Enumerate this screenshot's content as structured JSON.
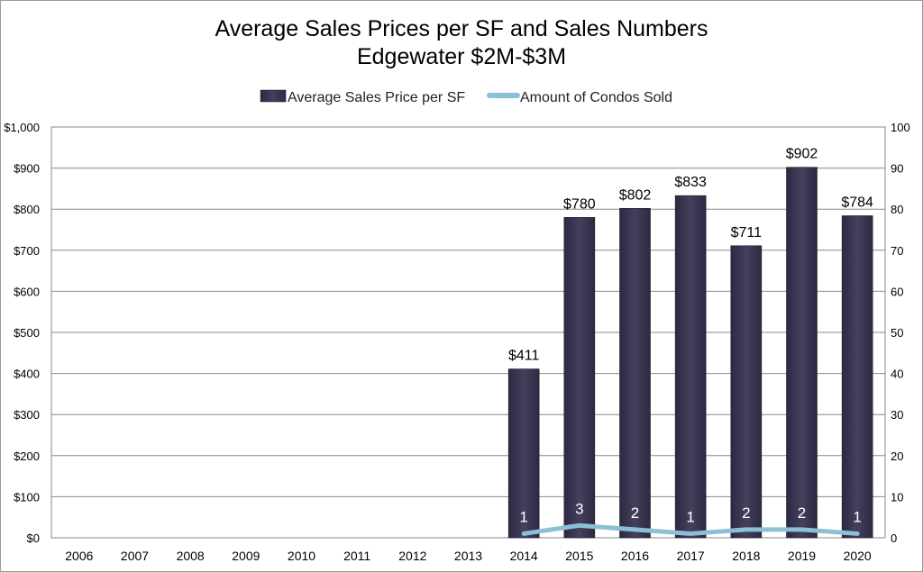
{
  "chart_data": {
    "type": "bar",
    "title": "Average Sales Prices per SF and Sales Numbers",
    "subtitle": "Edgewater $2M-$3M",
    "categories": [
      "2006",
      "2007",
      "2008",
      "2009",
      "2010",
      "2011",
      "2012",
      "2013",
      "2014",
      "2015",
      "2016",
      "2017",
      "2018",
      "2019",
      "2020"
    ],
    "series": [
      {
        "name": "Average Sales Price per SF",
        "type": "bar",
        "axis": "left",
        "color": "#383450",
        "values": [
          null,
          null,
          null,
          null,
          null,
          null,
          null,
          null,
          411,
          780,
          802,
          833,
          711,
          902,
          784
        ],
        "labels": [
          "",
          "",
          "",
          "",
          "",
          "",
          "",
          "",
          "$411",
          "$780",
          "$802",
          "$833",
          "$711",
          "$902",
          "$784"
        ]
      },
      {
        "name": "Amount of Condos Sold",
        "type": "line",
        "axis": "right",
        "color": "#8cc0d6",
        "values": [
          null,
          null,
          null,
          null,
          null,
          null,
          null,
          null,
          1,
          3,
          2,
          1,
          2,
          2,
          1
        ],
        "labels": [
          "",
          "",
          "",
          "",
          "",
          "",
          "",
          "",
          "1",
          "3",
          "2",
          "1",
          "2",
          "2",
          "1"
        ]
      }
    ],
    "y_left": {
      "ylim": [
        0,
        1000
      ],
      "ticks": [
        0,
        100,
        200,
        300,
        400,
        500,
        600,
        700,
        800,
        900,
        1000
      ],
      "tick_labels": [
        "$0",
        "$100",
        "$200",
        "$300",
        "$400",
        "$500",
        "$600",
        "$700",
        "$800",
        "$900",
        "$1,000"
      ]
    },
    "y_right": {
      "ylim": [
        0,
        100
      ],
      "ticks": [
        0,
        10,
        20,
        30,
        40,
        50,
        60,
        70,
        80,
        90,
        100
      ],
      "tick_labels": [
        "0",
        "10",
        "20",
        "30",
        "40",
        "50",
        "60",
        "70",
        "80",
        "90",
        "100"
      ]
    },
    "grid": true,
    "legend_position": "top"
  }
}
